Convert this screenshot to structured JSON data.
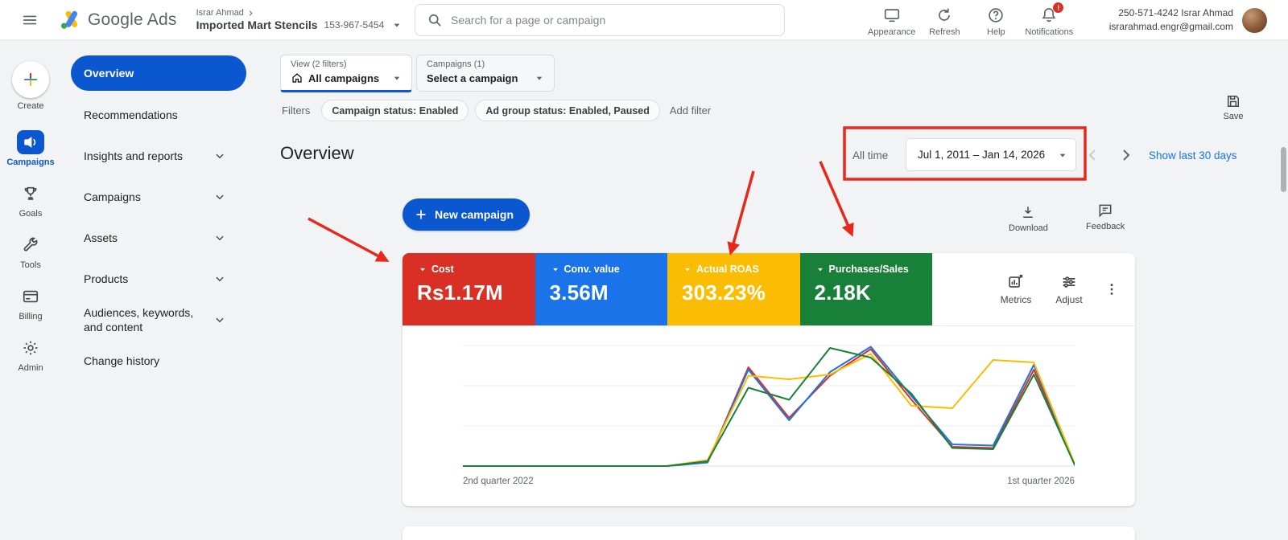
{
  "theme": {
    "primary": "#0b57d0",
    "link": "#1a73e8",
    "bg": "#f1f3f4",
    "topbar": "#ffffff",
    "border": "#dadce0",
    "text": "#202124",
    "muted": "#5f6368"
  },
  "header": {
    "product": "Google Ads",
    "breadcrumb_user": "Israr Ahmad",
    "account_name": "Imported Mart Stencils",
    "account_id": "153-967-5454",
    "search_placeholder": "Search for a page or campaign",
    "actions": [
      {
        "label": "Appearance",
        "icon": "appearance-icon"
      },
      {
        "label": "Refresh",
        "icon": "refresh-icon"
      },
      {
        "label": "Help",
        "icon": "help-icon"
      },
      {
        "label": "Notifications",
        "icon": "notifications-icon",
        "badge": "!"
      }
    ],
    "profile_line1": "250-571-4242 Israr Ahmad",
    "profile_line2": "israrahmad.engr@gmail.com"
  },
  "rail": {
    "items": [
      {
        "label": "Create",
        "icon": "create-plus-icon",
        "create": true
      },
      {
        "label": "Campaigns",
        "icon": "campaigns-icon",
        "active": true
      },
      {
        "label": "Goals",
        "icon": "goals-icon"
      },
      {
        "label": "Tools",
        "icon": "tools-icon"
      },
      {
        "label": "Billing",
        "icon": "billing-icon"
      },
      {
        "label": "Admin",
        "icon": "admin-icon"
      }
    ]
  },
  "nav": {
    "items": [
      {
        "label": "Overview",
        "active": true
      },
      {
        "label": "Recommendations"
      },
      {
        "label": "Insights and reports",
        "expandable": true
      },
      {
        "label": "Campaigns",
        "expandable": true
      },
      {
        "label": "Assets",
        "expandable": true
      },
      {
        "label": "Products",
        "expandable": true
      },
      {
        "label": "Audiences, keywords, and content",
        "expandable": true
      },
      {
        "label": "Change history"
      }
    ]
  },
  "toolbar": {
    "view_label": "View (2 filters)",
    "view_value": "All campaigns",
    "campaigns_label": "Campaigns (1)",
    "campaigns_value": "Select a campaign",
    "save_label": "Save"
  },
  "filters": {
    "label": "Filters",
    "chips": [
      "Campaign status: Enabled",
      "Ad group status: Enabled, Paused"
    ],
    "add_label": "Add filter"
  },
  "overview": {
    "title": "Overview",
    "date_preset": "All time",
    "date_range": "Jul 1, 2011 – Jan 14, 2026",
    "show_last": "Show last 30 days",
    "new_campaign": "New campaign",
    "download": "Download",
    "feedback": "Feedback",
    "metrics_btn": "Metrics",
    "adjust_btn": "Adjust"
  },
  "scorecards": [
    {
      "label": "Cost",
      "value": "Rs1.17M",
      "color": "#d93025"
    },
    {
      "label": "Conv. value",
      "value": "3.56M",
      "color": "#1a73e8"
    },
    {
      "label": "Actual ROAS",
      "value": "303.23%",
      "color": "#fbbc04"
    },
    {
      "label": "Purchases/Sales",
      "value": "2.18K",
      "color": "#188038"
    }
  ],
  "chart_data": {
    "type": "line",
    "title": "",
    "xlabel": "",
    "ylabel": "",
    "grid": "horizontal",
    "legend": "none (colors match scorecards)",
    "ylim": [
      0,
      100
    ],
    "y_unit": "relative scale, no y-axis tick labels shown",
    "visible_x_labels": [
      "2nd quarter 2022",
      "1st quarter 2026"
    ],
    "categories": [
      "Q2 2022",
      "Q3 2022",
      "Q4 2022",
      "Q1 2023",
      "Q2 2023",
      "Q3 2023",
      "Q4 2023",
      "Q1 2024",
      "Q2 2024",
      "Q3 2024",
      "Q4 2024",
      "Q1 2025",
      "Q2 2025",
      "Q3 2025",
      "Q4 2025",
      "Q1 2026"
    ],
    "series": [
      {
        "name": "Cost",
        "color": "#d93025",
        "values": [
          0,
          0,
          0,
          0,
          0,
          0,
          3,
          82,
          40,
          75,
          97,
          55,
          16,
          15,
          80,
          1
        ]
      },
      {
        "name": "Conv. value",
        "color": "#1a73e8",
        "values": [
          0,
          0,
          0,
          0,
          0,
          0,
          3,
          80,
          38,
          78,
          99,
          58,
          18,
          17,
          84,
          1
        ]
      },
      {
        "name": "Actual ROAS",
        "color": "#fbbc04",
        "values": [
          0,
          0,
          0,
          0,
          0,
          0,
          5,
          75,
          72,
          76,
          93,
          50,
          48,
          88,
          86,
          2
        ]
      },
      {
        "name": "Purchases/Sales",
        "color": "#188038",
        "values": [
          0,
          0,
          0,
          0,
          0,
          0,
          4,
          65,
          55,
          98,
          90,
          60,
          15,
          14,
          76,
          1
        ]
      }
    ]
  },
  "annotations": {
    "color": "#e8281c",
    "items": [
      {
        "type": "rect",
        "target": "date-range-picker"
      },
      {
        "type": "arrow",
        "target": "cost-scorecard"
      },
      {
        "type": "arrow",
        "target": "actual-roas-scorecard"
      },
      {
        "type": "arrow",
        "target": "purchases-sales-scorecard"
      }
    ]
  }
}
